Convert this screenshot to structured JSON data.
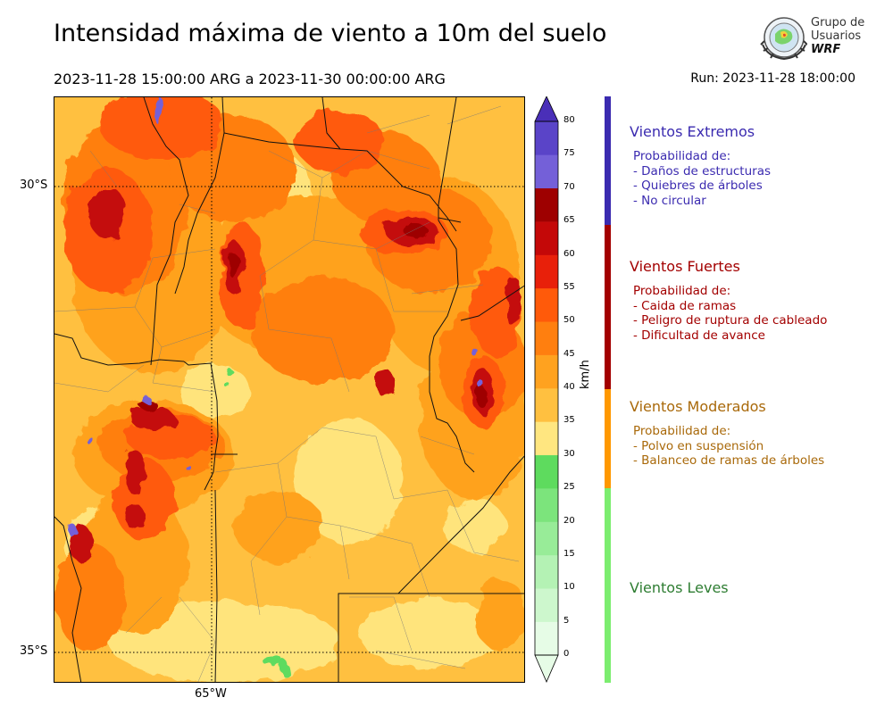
{
  "header": {
    "title": "Intensidad máxima de viento a 10m del suelo",
    "period": "2023-11-28 15:00:00 ARG  a  2023-11-30 00:00:00 ARG",
    "run": "Run: 2023-11-28 18:00:00"
  },
  "logo": {
    "line1": "Grupo de",
    "line2": "Usuarios",
    "line3": "WRF"
  },
  "map": {
    "lat_labels": [
      "30°S",
      "35°S"
    ],
    "lon_labels": [
      "65°W"
    ]
  },
  "colorbar": {
    "unit": "km/h",
    "ticks": [
      "0",
      "5",
      "10",
      "15",
      "20",
      "25",
      "30",
      "35",
      "40",
      "45",
      "50",
      "55",
      "60",
      "65",
      "70",
      "75",
      "80"
    ],
    "colors": [
      "#e6fce6",
      "#cdf7cd",
      "#b4f2b4",
      "#98ec98",
      "#7ce47c",
      "#5edb5e",
      "#ffe680",
      "#ffc040",
      "#ffa21f",
      "#ff7f0f",
      "#ff5a0a",
      "#e8200a",
      "#c40808",
      "#9e0000",
      "#7460d8",
      "#5a44c8",
      "#4a2fb8"
    ]
  },
  "categories": [
    {
      "title": "Vientos Extremos",
      "color": "#3b2bb0",
      "intro": "Probabilidad de:",
      "items": [
        "- Daños de estructuras",
        "- Quiebres de árboles",
        "- No circular"
      ]
    },
    {
      "title": "Vientos Fuertes",
      "color": "#a30000",
      "intro": "Probabilidad de:",
      "items": [
        "- Caida de ramas",
        "- Peligro de ruptura de cableado",
        "- Dificultad de avance"
      ]
    },
    {
      "title": "Vientos Moderados",
      "color": "#a9690a",
      "intro": "Probabilidad de:",
      "items": [
        "- Polvo en suspensión",
        "- Balanceo de ramas de árboles"
      ]
    },
    {
      "title": "Vientos Leves",
      "color": "#2e7d32",
      "intro": "",
      "items": []
    }
  ],
  "category_bar_colors": [
    "#3b2bb0",
    "#a30000",
    "#ff9800",
    "#7ced6f"
  ]
}
